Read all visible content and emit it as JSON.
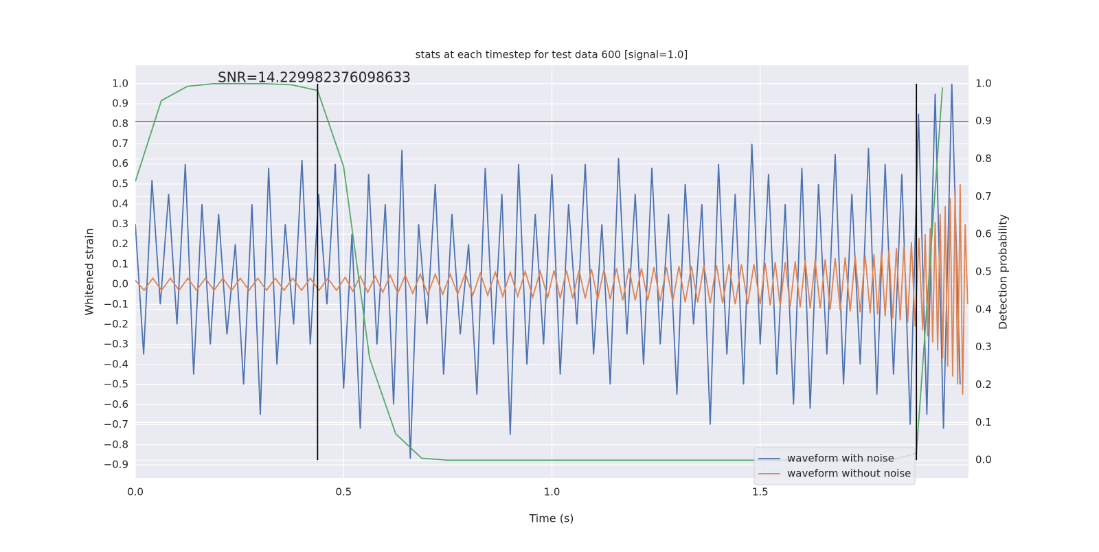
{
  "chart_data": {
    "type": "line",
    "title": "stats at each timestep for test data 600 [signal=1.0]",
    "xlabel": "Time (s)",
    "ylabel": "Whitened strain",
    "y2label": "Detection probability",
    "annotation": "SNR=14.229982376098633",
    "xlim": [
      0,
      2.0
    ],
    "ylim": [
      -0.965,
      1.092
    ],
    "y2lim": [
      -0.047,
      1.049
    ],
    "xticks": [
      {
        "value": 0,
        "label": "0.0"
      },
      {
        "value": 0.5,
        "label": "0.5"
      },
      {
        "value": 1,
        "label": "1.0"
      },
      {
        "value": 1.5,
        "label": "1.5"
      }
    ],
    "yticks": [
      {
        "value": -0.9,
        "label": "−0.9"
      },
      {
        "value": -0.8,
        "label": "−0.8"
      },
      {
        "value": -0.7,
        "label": "−0.7"
      },
      {
        "value": -0.6,
        "label": "−0.6"
      },
      {
        "value": -0.5,
        "label": "−0.5"
      },
      {
        "value": -0.4,
        "label": "−0.4"
      },
      {
        "value": -0.3,
        "label": "−0.3"
      },
      {
        "value": -0.2,
        "label": "−0.2"
      },
      {
        "value": -0.1,
        "label": "−0.1"
      },
      {
        "value": 0,
        "label": "0.0"
      },
      {
        "value": 0.1,
        "label": "0.1"
      },
      {
        "value": 0.2,
        "label": "0.2"
      },
      {
        "value": 0.3,
        "label": "0.3"
      },
      {
        "value": 0.4,
        "label": "0.4"
      },
      {
        "value": 0.5,
        "label": "0.5"
      },
      {
        "value": 0.6,
        "label": "0.6"
      },
      {
        "value": 0.7,
        "label": "0.7"
      },
      {
        "value": 0.8,
        "label": "0.8"
      },
      {
        "value": 0.9,
        "label": "0.9"
      },
      {
        "value": 1,
        "label": "1.0"
      }
    ],
    "y2ticks": [
      {
        "value": 0,
        "label": "0.0"
      },
      {
        "value": 0.1,
        "label": "0.1"
      },
      {
        "value": 0.2,
        "label": "0.2"
      },
      {
        "value": 0.3,
        "label": "0.3"
      },
      {
        "value": 0.4,
        "label": "0.4"
      },
      {
        "value": 0.5,
        "label": "0.5"
      },
      {
        "value": 0.6,
        "label": "0.6"
      },
      {
        "value": 0.7,
        "label": "0.7"
      },
      {
        "value": 0.8,
        "label": "0.8"
      },
      {
        "value": 0.9,
        "label": "0.9"
      },
      {
        "value": 1,
        "label": "1.0"
      }
    ],
    "grid": true,
    "legend": "lower right",
    "threshold": 0.9,
    "threshold_axis": "y2",
    "threshold_color": "#c44e52",
    "vlines": [
      0.4375,
      1.875
    ],
    "vline_range": [
      0,
      1
    ],
    "vline_color": "#000000",
    "series": [
      {
        "name": "waveform with noise",
        "color": "#4c72b0",
        "x": [
          0,
          0.02,
          0.04,
          0.06,
          0.08,
          0.1,
          0.12,
          0.14,
          0.16,
          0.18,
          0.2,
          0.22,
          0.24,
          0.26,
          0.28,
          0.3,
          0.32,
          0.34,
          0.36,
          0.38,
          0.4,
          0.42,
          0.44,
          0.46,
          0.48,
          0.5,
          0.52,
          0.54,
          0.56,
          0.58,
          0.6,
          0.62,
          0.64,
          0.66,
          0.68,
          0.7,
          0.72,
          0.74,
          0.76,
          0.78,
          0.8,
          0.82,
          0.84,
          0.86,
          0.88,
          0.9,
          0.92,
          0.94,
          0.96,
          0.98,
          1,
          1.02,
          1.04,
          1.06,
          1.08,
          1.1,
          1.12,
          1.14,
          1.16,
          1.18,
          1.2,
          1.22,
          1.24,
          1.26,
          1.28,
          1.3,
          1.32,
          1.34,
          1.36,
          1.38,
          1.4,
          1.42,
          1.44,
          1.46,
          1.48,
          1.5,
          1.52,
          1.54,
          1.56,
          1.58,
          1.6,
          1.62,
          1.64,
          1.66,
          1.68,
          1.7,
          1.72,
          1.74,
          1.76,
          1.78,
          1.8,
          1.82,
          1.84,
          1.86,
          1.88,
          1.9,
          1.92,
          1.94,
          1.96,
          1.98
        ],
        "values": [
          0.3,
          -0.35,
          0.52,
          -0.1,
          0.45,
          -0.2,
          0.6,
          -0.45,
          0.4,
          -0.3,
          0.35,
          -0.25,
          0.2,
          -0.5,
          0.4,
          -0.65,
          0.58,
          -0.4,
          0.3,
          -0.2,
          0.62,
          -0.3,
          0.45,
          -0.1,
          0.6,
          -0.52,
          0.25,
          -0.72,
          0.55,
          -0.3,
          0.4,
          -0.6,
          0.67,
          -0.87,
          0.3,
          -0.2,
          0.5,
          -0.45,
          0.35,
          -0.25,
          0.2,
          -0.55,
          0.58,
          -0.3,
          0.45,
          -0.75,
          0.6,
          -0.4,
          0.35,
          -0.3,
          0.55,
          -0.45,
          0.4,
          -0.2,
          0.6,
          -0.35,
          0.3,
          -0.5,
          0.63,
          -0.25,
          0.45,
          -0.4,
          0.58,
          -0.3,
          0.35,
          -0.55,
          0.5,
          -0.2,
          0.4,
          -0.7,
          0.6,
          -0.35,
          0.45,
          -0.5,
          0.7,
          -0.3,
          0.55,
          -0.45,
          0.4,
          -0.6,
          0.58,
          -0.62,
          0.5,
          -0.35,
          0.65,
          -0.5,
          0.45,
          -0.4,
          0.68,
          -0.55,
          0.6,
          -0.45,
          0.55,
          -0.7,
          0.85,
          -0.65,
          0.95,
          -0.72,
          1.0,
          -0.5
        ]
      },
      {
        "name": "waveform without noise",
        "color": "#dd8452",
        "x": [
          0,
          0.021,
          0.042,
          0.063,
          0.084,
          0.105,
          0.126,
          0.147,
          0.168,
          0.189,
          0.21,
          0.231,
          0.252,
          0.273,
          0.294,
          0.315,
          0.336,
          0.357,
          0.378,
          0.399,
          0.42,
          0.441,
          0.462,
          0.483,
          0.504,
          0.522,
          0.54,
          0.558,
          0.576,
          0.594,
          0.612,
          0.63,
          0.648,
          0.666,
          0.684,
          0.702,
          0.72,
          0.738,
          0.756,
          0.774,
          0.792,
          0.81,
          0.828,
          0.846,
          0.864,
          0.882,
          0.9,
          0.918,
          0.936,
          0.954,
          0.972,
          0.99,
          1.005,
          1.02,
          1.035,
          1.05,
          1.065,
          1.08,
          1.095,
          1.11,
          1.125,
          1.14,
          1.155,
          1.17,
          1.185,
          1.2,
          1.215,
          1.23,
          1.245,
          1.26,
          1.275,
          1.29,
          1.305,
          1.32,
          1.335,
          1.35,
          1.365,
          1.38,
          1.395,
          1.41,
          1.425,
          1.44,
          1.455,
          1.47,
          1.485,
          1.5,
          1.512,
          1.524,
          1.536,
          1.548,
          1.56,
          1.572,
          1.584,
          1.596,
          1.608,
          1.62,
          1.632,
          1.644,
          1.656,
          1.668,
          1.68,
          1.692,
          1.704,
          1.716,
          1.728,
          1.74,
          1.752,
          1.764,
          1.773,
          1.782,
          1.791,
          1.8,
          1.809,
          1.818,
          1.827,
          1.836,
          1.845,
          1.854,
          1.863,
          1.872,
          1.881,
          1.89,
          1.896,
          1.902,
          1.908,
          1.914,
          1.92,
          1.926,
          1.932,
          1.938,
          1.944,
          1.95,
          1.956,
          1.962,
          1.968,
          1.974,
          1.98,
          1.986,
          1.992,
          1.998
        ],
        "values": [
          0.02,
          -0.03,
          0.03,
          -0.03,
          0.03,
          -0.03,
          0.03,
          -0.03,
          0.03,
          -0.03,
          0.03,
          -0.03,
          0.03,
          -0.03,
          0.03,
          -0.03,
          0.03,
          -0.03,
          0.03,
          -0.03,
          0.03,
          -0.03,
          0.03,
          -0.03,
          0.035,
          -0.035,
          0.04,
          -0.04,
          0.04,
          -0.04,
          0.045,
          -0.045,
          0.045,
          -0.045,
          0.05,
          -0.05,
          0.05,
          -0.05,
          0.05,
          -0.05,
          0.055,
          -0.055,
          0.055,
          -0.055,
          0.06,
          -0.06,
          0.06,
          -0.06,
          0.065,
          -0.065,
          0.065,
          -0.065,
          0.07,
          -0.07,
          0.07,
          -0.07,
          0.07,
          -0.07,
          0.075,
          -0.075,
          0.075,
          -0.075,
          0.08,
          -0.08,
          0.08,
          -0.08,
          0.08,
          -0.08,
          0.085,
          -0.085,
          0.085,
          -0.085,
          0.09,
          -0.09,
          0.09,
          -0.09,
          0.095,
          -0.095,
          0.095,
          -0.095,
          0.1,
          -0.1,
          0.1,
          -0.1,
          0.1,
          -0.1,
          0.105,
          -0.105,
          0.11,
          -0.11,
          0.11,
          -0.11,
          0.115,
          -0.115,
          0.12,
          -0.12,
          0.12,
          -0.12,
          0.125,
          -0.125,
          0.13,
          -0.13,
          0.135,
          -0.135,
          0.14,
          -0.14,
          0.145,
          -0.145,
          0.15,
          -0.15,
          0.16,
          -0.16,
          0.17,
          -0.17,
          0.18,
          -0.18,
          0.19,
          -0.19,
          0.21,
          -0.21,
          0.23,
          -0.23,
          0.25,
          -0.26,
          0.28,
          -0.29,
          0.31,
          -0.33,
          0.35,
          -0.37,
          0.39,
          -0.41,
          0.43,
          -0.46,
          0.48,
          -0.5,
          0.5,
          -0.55,
          0.3,
          -0.1
        ]
      },
      {
        "color": "#55a868",
        "axis": "y2",
        "x": [
          0,
          0.0625,
          0.125,
          0.1875,
          0.25,
          0.3125,
          0.375,
          0.4375,
          0.5,
          0.5625,
          0.625,
          0.6875,
          0.75,
          0.8125,
          0.875,
          0.9375,
          1,
          1.0625,
          1.125,
          1.1875,
          1.25,
          1.3125,
          1.375,
          1.4375,
          1.5,
          1.5625,
          1.625,
          1.6875,
          1.75,
          1.8125,
          1.875,
          1.9375
        ],
        "values": [
          0.74,
          0.955,
          0.993,
          1.0,
          1.0,
          1.0,
          0.997,
          0.982,
          0.78,
          0.27,
          0.07,
          0.005,
          0,
          0,
          0,
          0,
          0,
          0,
          0,
          0,
          0,
          0,
          0,
          0,
          0,
          0,
          0,
          0,
          0,
          0,
          0.018,
          0.99
        ]
      }
    ]
  }
}
